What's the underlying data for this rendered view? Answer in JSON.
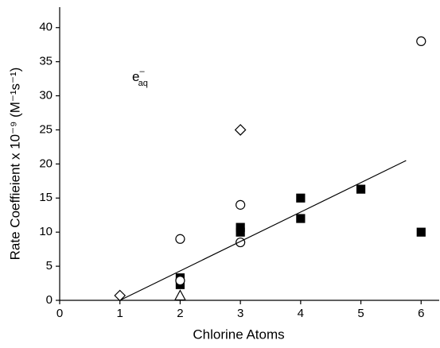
{
  "chart_data": {
    "type": "scatter",
    "x_label": "Chlorine Atoms",
    "y_label": "Rate Coeffieient x 10⁻⁹ (M⁻¹s⁻¹)",
    "annotation": {
      "base": "e",
      "superscript": "–",
      "subscript": "aq"
    },
    "xlim": [
      0,
      6.3
    ],
    "ylim": [
      0,
      43
    ],
    "xticks": [
      0,
      1,
      2,
      3,
      4,
      5,
      6
    ],
    "yticks": [
      0,
      5,
      10,
      15,
      20,
      25,
      30,
      35,
      40
    ],
    "color": "#000000",
    "series": [
      {
        "marker": "square",
        "filled": true,
        "x": [
          2,
          2,
          3,
          3,
          4,
          4,
          5,
          6
        ],
        "y": [
          3.3,
          2.3,
          10.7,
          10,
          15,
          12,
          16.3,
          10
        ]
      },
      {
        "marker": "circle",
        "filled": false,
        "x": [
          2,
          2,
          3,
          3,
          6
        ],
        "y": [
          9,
          2.9,
          14,
          8.5,
          38
        ]
      },
      {
        "marker": "diamond",
        "filled": false,
        "x": [
          1,
          3
        ],
        "y": [
          0.7,
          25
        ]
      },
      {
        "marker": "triangle",
        "filled": false,
        "x": [
          2
        ],
        "y": [
          0.7
        ]
      },
      {
        "marker": "line",
        "x": [
          1,
          5.75
        ],
        "y": [
          0,
          20.5
        ]
      }
    ]
  }
}
